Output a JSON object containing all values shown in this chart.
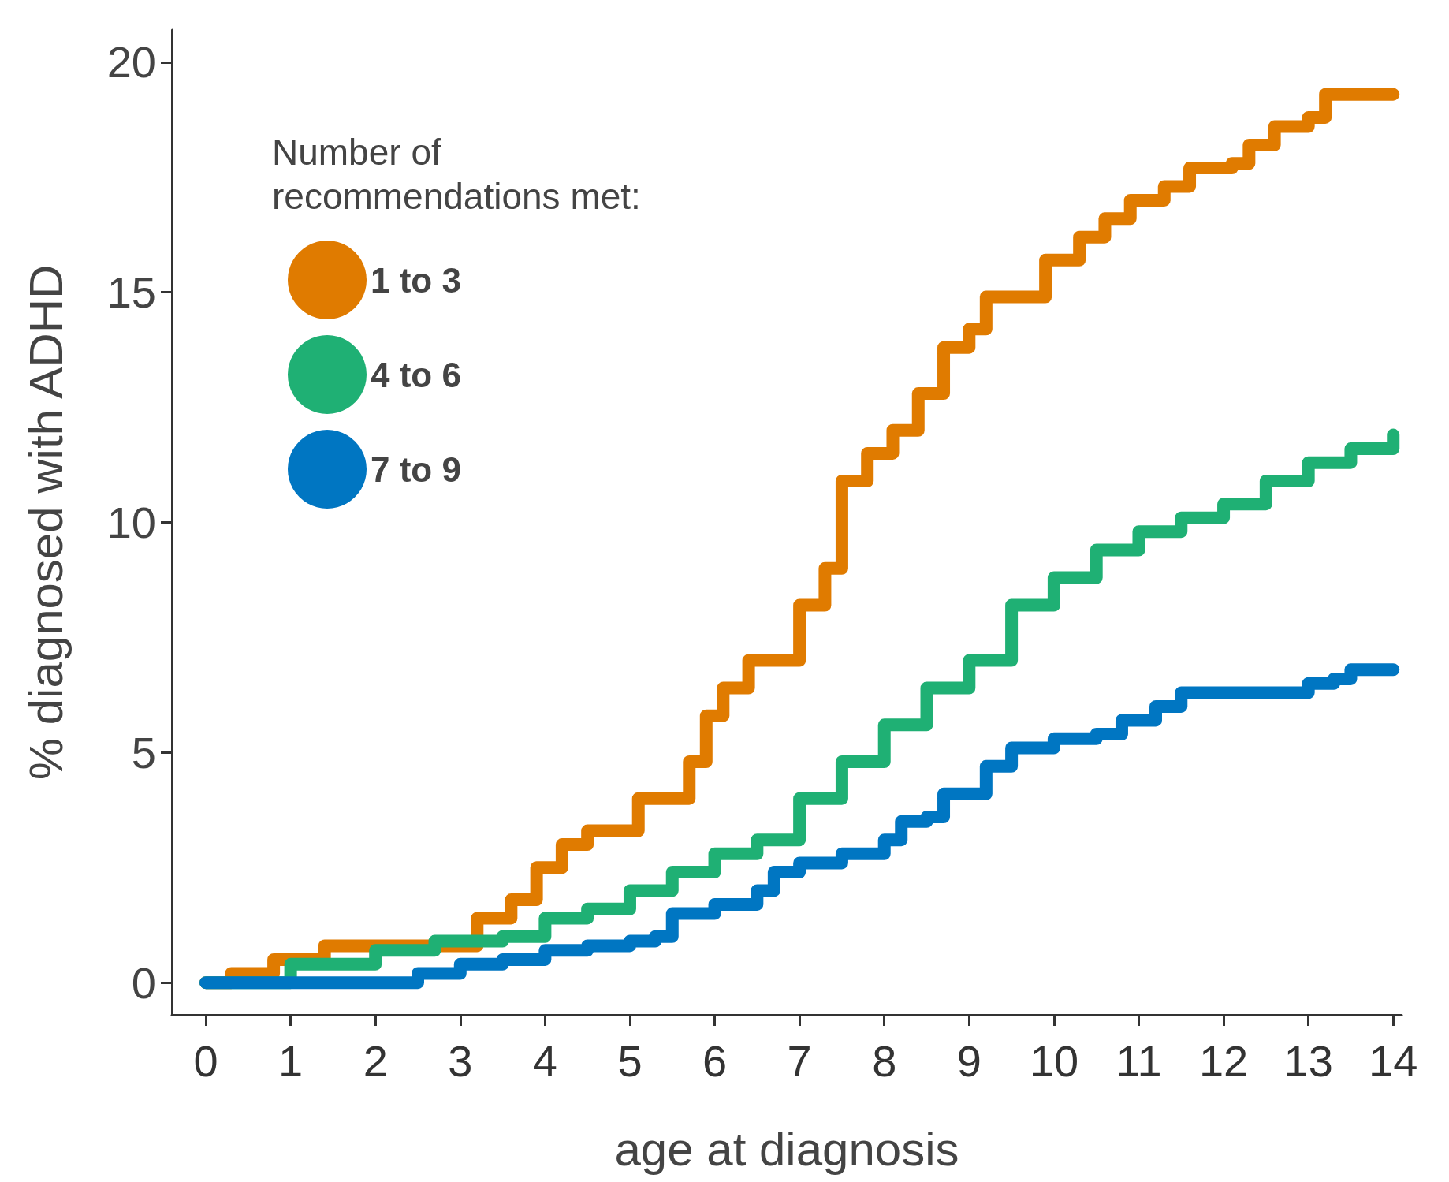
{
  "chart_data": {
    "type": "step",
    "xlabel": "age at diagnosis",
    "ylabel": "% diagnosed with ADHD",
    "legend_title": "Number of recommendations met:",
    "xlim": [
      -0.4,
      14.1
    ],
    "xticks": [
      0,
      1,
      2,
      3,
      4,
      5,
      6,
      7,
      8,
      9,
      10,
      11,
      12,
      13,
      14
    ],
    "ylim": [
      -0.7,
      20.7
    ],
    "yticks": [
      0,
      5,
      10,
      15,
      20
    ],
    "grid": false,
    "legend": "top left",
    "marker": "none",
    "line_style": "solid",
    "series": [
      {
        "name": "1 to 3",
        "color": "#e07b00",
        "x": [
          0,
          0.3,
          0.8,
          1.4,
          3.1,
          3.2,
          3.6,
          3.9,
          4.2,
          4.5,
          5.1,
          5.7,
          5.9,
          6.1,
          6.4,
          7.0,
          7.3,
          7.5,
          7.8,
          8.1,
          8.4,
          8.7,
          9.0,
          9.2,
          9.9,
          10.3,
          10.6,
          10.9,
          11.3,
          11.6,
          12.1,
          12.3,
          12.6,
          13.0,
          13.2,
          14.0
        ],
        "values": [
          0,
          0.2,
          0.5,
          0.8,
          0.8,
          1.4,
          1.8,
          2.5,
          3.0,
          3.3,
          4.0,
          4.8,
          5.8,
          6.4,
          7.0,
          8.2,
          9.0,
          10.9,
          11.5,
          12.0,
          12.8,
          13.8,
          14.2,
          14.9,
          15.7,
          16.2,
          16.6,
          17.0,
          17.3,
          17.7,
          17.8,
          18.2,
          18.6,
          18.8,
          19.3,
          19.3
        ]
      },
      {
        "name": "4 to 6",
        "color": "#1fb074",
        "x": [
          0,
          1,
          2,
          2.7,
          3.5,
          4,
          4.5,
          5,
          5.5,
          6,
          6.5,
          7,
          7.5,
          8,
          8.5,
          9,
          9.5,
          10,
          10.5,
          11,
          11.5,
          12,
          12.5,
          13,
          13.5,
          14
        ],
        "values": [
          0,
          0.4,
          0.7,
          0.9,
          1.0,
          1.4,
          1.6,
          2.0,
          2.4,
          2.8,
          3.1,
          4.0,
          4.8,
          5.6,
          6.4,
          7.0,
          8.2,
          8.8,
          9.4,
          9.8,
          10.1,
          10.4,
          10.9,
          11.3,
          11.6,
          11.9
        ]
      },
      {
        "name": "7 to 9",
        "color": "#0076c2",
        "x": [
          0,
          2.2,
          2.5,
          3,
          3.5,
          4,
          4.5,
          5,
          5.3,
          5.5,
          6,
          6.5,
          6.7,
          7,
          7.5,
          8,
          8.2,
          8.5,
          8.7,
          9.2,
          9.5,
          10,
          10.5,
          10.8,
          11.2,
          11.5,
          13,
          13.3,
          13.5,
          14
        ],
        "values": [
          0,
          0,
          0.2,
          0.4,
          0.5,
          0.7,
          0.8,
          0.9,
          1.0,
          1.5,
          1.7,
          2.0,
          2.4,
          2.6,
          2.8,
          3.1,
          3.5,
          3.6,
          4.1,
          4.7,
          5.1,
          5.3,
          5.4,
          5.7,
          6.0,
          6.3,
          6.5,
          6.6,
          6.8,
          6.8
        ]
      }
    ]
  }
}
